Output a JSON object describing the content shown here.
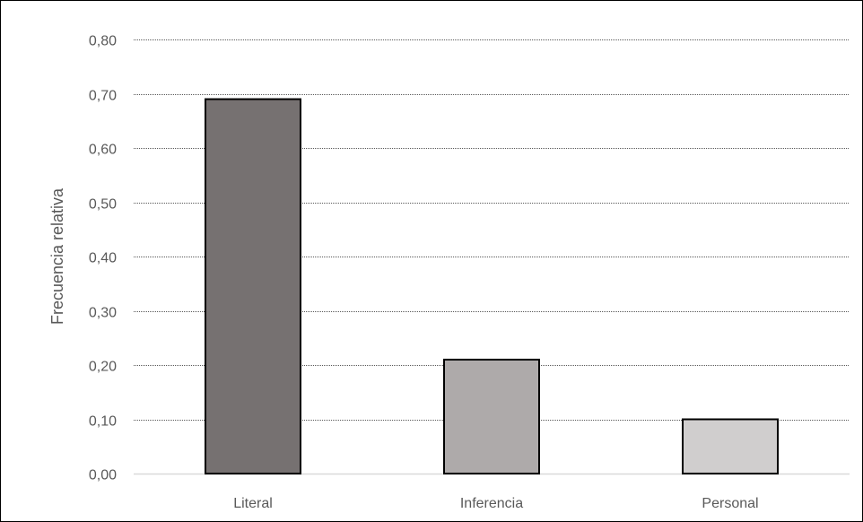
{
  "chart_data": {
    "type": "bar",
    "title": "",
    "xlabel": "",
    "ylabel": "Frecuencia relativa",
    "categories": [
      "Literal",
      "Inferencia",
      "Personal"
    ],
    "values": [
      0.69,
      0.21,
      0.1
    ],
    "ylim": [
      0,
      0.8
    ],
    "yticks": [
      "0,00",
      "0,10",
      "0,20",
      "0,30",
      "0,40",
      "0,50",
      "0,60",
      "0,70",
      "0,80"
    ],
    "grid": true,
    "legend": "none",
    "bar_colors": [
      "#767171",
      "#AEAAAA",
      "#D0CECE"
    ],
    "bar_outline_color": "#000000",
    "gridline_color": "#595959"
  }
}
